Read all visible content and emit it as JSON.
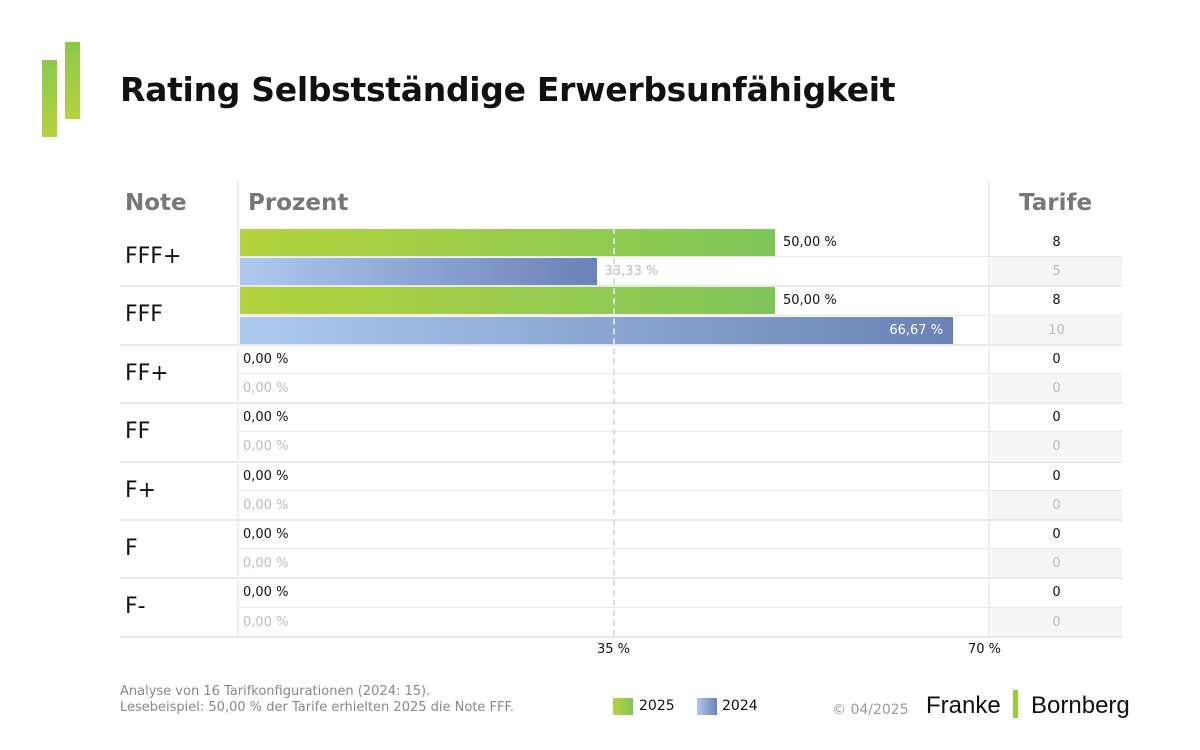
{
  "title": "Rating Selbstständige Erwerbsunfähigkeit",
  "headers": {
    "note": "Note",
    "percent": "Prozent",
    "tarife": "Tarife"
  },
  "chart_data": {
    "type": "bar",
    "orientation": "horizontal",
    "categories": [
      "FFF+",
      "FFF",
      "FF+",
      "FF",
      "F+",
      "F",
      "F-"
    ],
    "series": [
      {
        "name": "2025",
        "values": [
          50.0,
          50.0,
          0,
          0,
          0,
          0,
          0
        ],
        "labels": [
          "50,00 %",
          "50,00 %",
          "0,00 %",
          "0,00 %",
          "0,00 %",
          "0,00 %",
          "0,00 %"
        ],
        "counts": [
          "8",
          "8",
          "0",
          "0",
          "0",
          "0",
          "0"
        ],
        "color": "#8cc84b"
      },
      {
        "name": "2024",
        "values": [
          33.33,
          66.67,
          0,
          0,
          0,
          0,
          0
        ],
        "labels": [
          "33,33 %",
          "66,67 %",
          "0,00 %",
          "0,00 %",
          "0,00 %",
          "0,00 %",
          "0,00 %"
        ],
        "counts": [
          "5",
          "10",
          "0",
          "0",
          "0",
          "0",
          "0"
        ],
        "color": "#7b93c4"
      }
    ],
    "xlim": [
      0,
      82
    ],
    "ticks": [
      "35 %",
      "70 %"
    ],
    "reference_line": 35,
    "legend": "bottom"
  },
  "footer": {
    "line1": "Analyse von 16 Tarifkonfigurationen (2024: 15).",
    "line2": "Lesebeispiel: 50,00 % der Tarife erhielten 2025 die Note FFF.",
    "copyright": "© 04/2025",
    "brand": "Franke | Bornberg"
  }
}
